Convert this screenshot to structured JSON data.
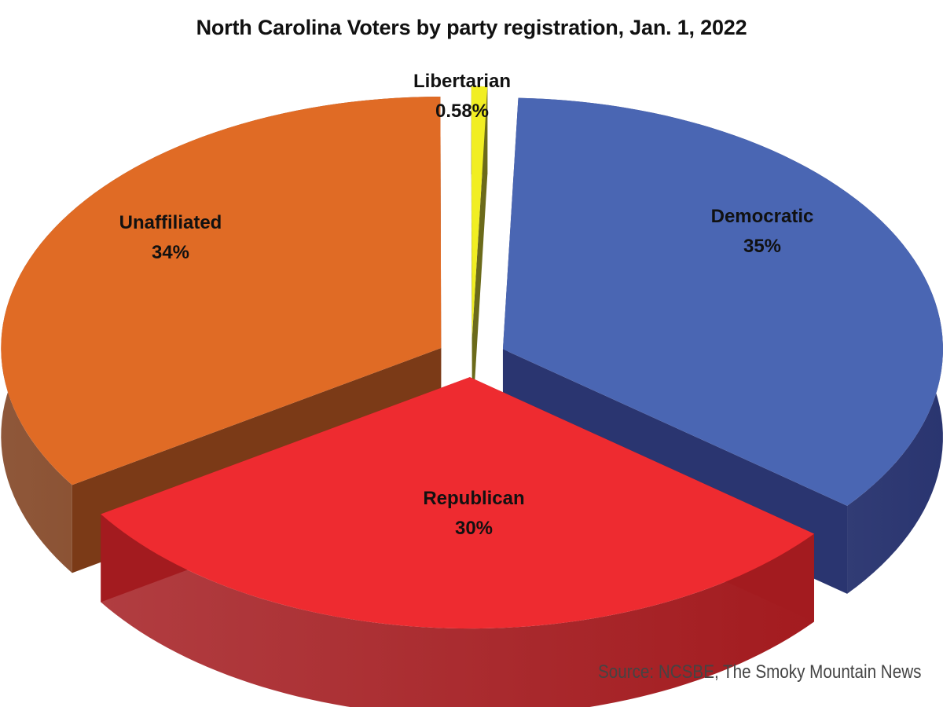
{
  "chart_data": {
    "type": "pie",
    "title": "North Carolina Voters by party registration, Jan. 1, 2022",
    "slices": [
      {
        "name": "Democratic",
        "percent_label": "35%",
        "value": 35,
        "color": "#4a66b3",
        "side_color": "#2a3570"
      },
      {
        "name": "Republican",
        "percent_label": "30%",
        "value": 30,
        "color": "#ee2b30",
        "side_color": "#a31b1f"
      },
      {
        "name": "Unaffiliated",
        "percent_label": "34%",
        "value": 34,
        "color": "#e06b25",
        "side_color": "#7b3a17"
      },
      {
        "name": "Libertarian",
        "percent_label": "0.58%",
        "value": 0.58,
        "color": "#f1ee22",
        "side_color": "#6b6a1a"
      }
    ],
    "legend": "none",
    "style": "3d-exploded"
  },
  "source": "Source: NCSBE, The Smoky Mountain News"
}
